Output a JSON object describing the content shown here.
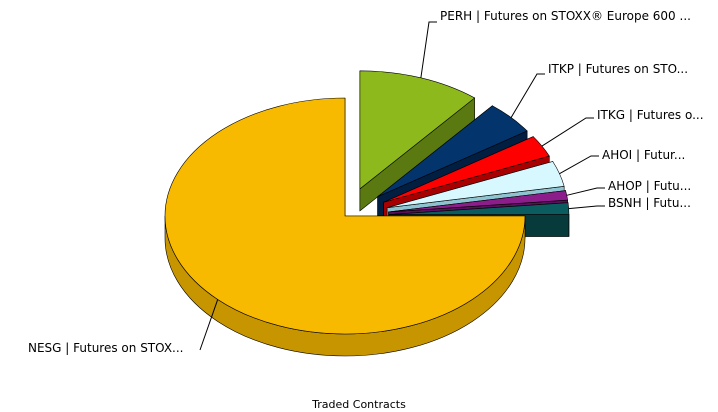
{
  "chart_data": {
    "type": "pie",
    "caption": "Traded Contracts",
    "slices": [
      {
        "label": "NESG | Futures on STOX...",
        "value": 75.0,
        "color": "#F7BA00",
        "side_color": "#C79500"
      },
      {
        "label": "PERH | Futures on STOXX® Europe 600 ...",
        "value": 11.0,
        "color": "#8DB91D",
        "side_color": "#5A7A11"
      },
      {
        "label": "ITKP | Futures on STO...",
        "value": 4.6,
        "color": "#04346C",
        "side_color": "#021E40"
      },
      {
        "label": "ITKG | Futures o...",
        "value": 3.0,
        "color": "#FF0000",
        "side_color": "#A80000"
      },
      {
        "label": "AHOI | Futur...",
        "value": 3.5,
        "color": "#D8F8FF",
        "side_color": "#8EC4D0"
      },
      {
        "label": "AHOP | Futu...",
        "value": 1.3,
        "color": "#8B1E8A",
        "side_color": "#5A0F5A"
      },
      {
        "label": "BSNH | Futu...",
        "value": 1.6,
        "color": "#0A5C5E",
        "side_color": "#063A3B"
      }
    ]
  }
}
